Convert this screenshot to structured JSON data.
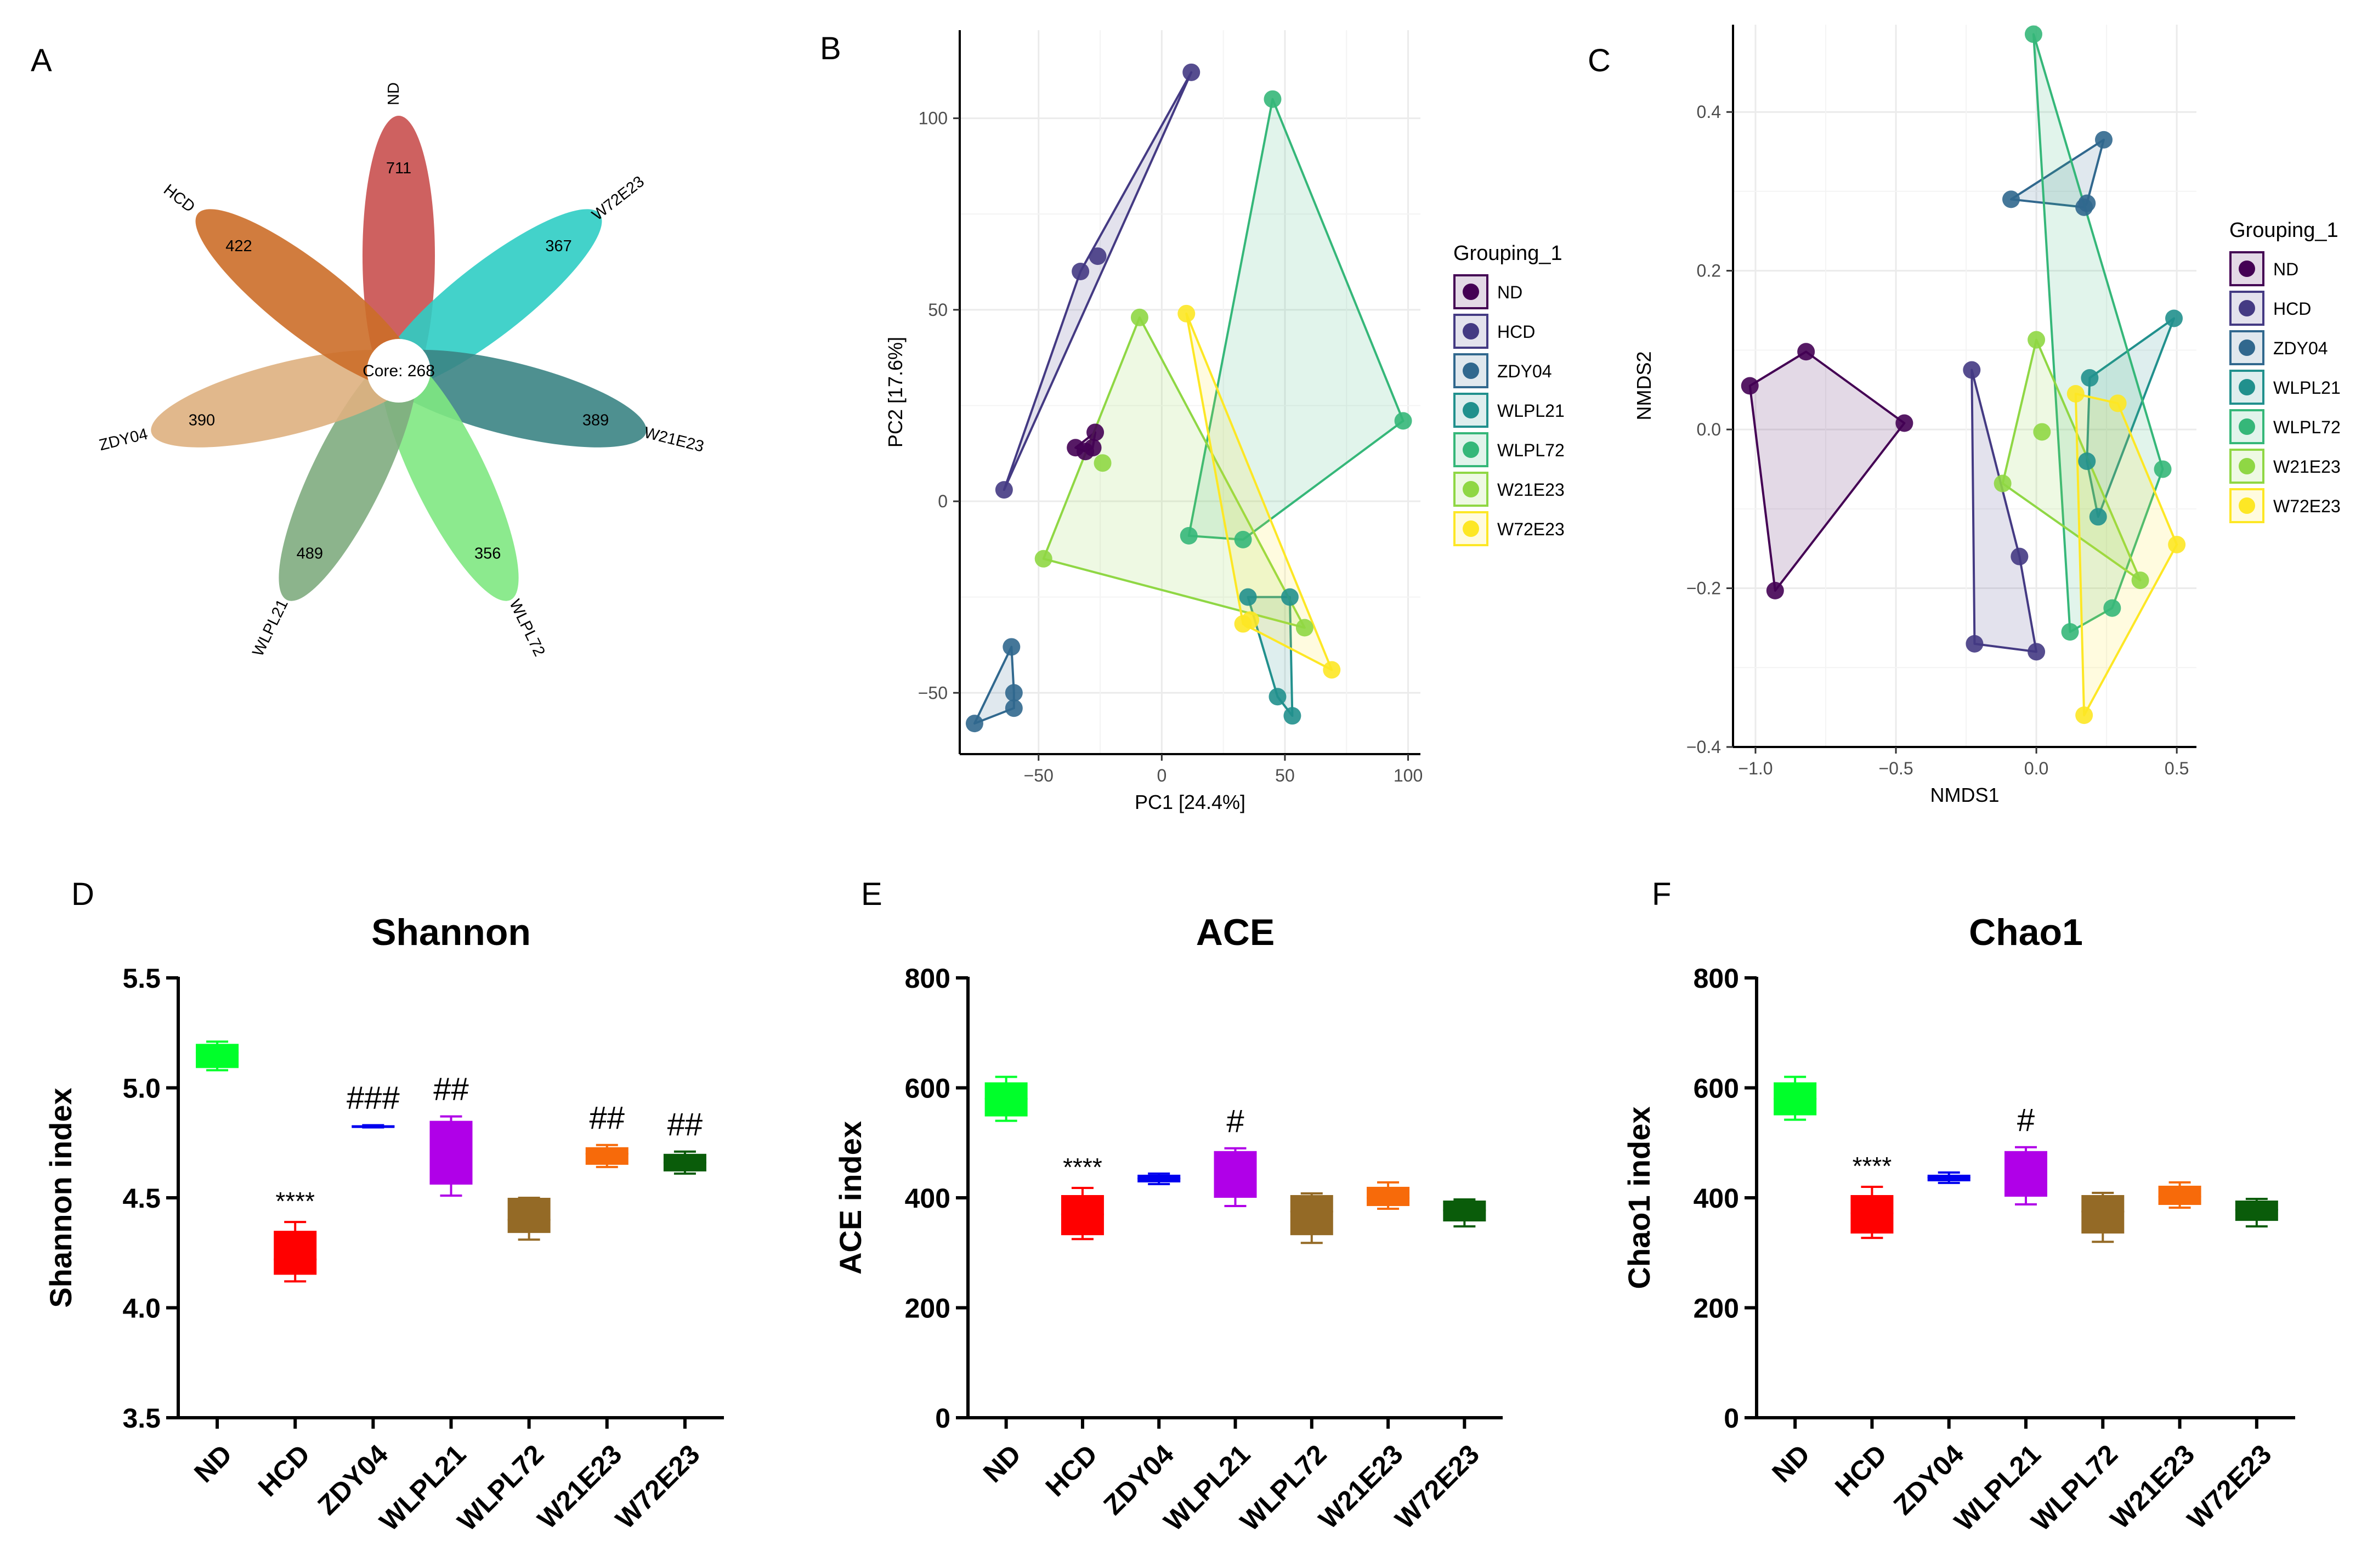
{
  "figure": {
    "panel_letters": [
      "A",
      "B",
      "C",
      "D",
      "E",
      "F"
    ]
  },
  "groups": [
    {
      "name": "ND",
      "pca_color": "#440154",
      "box_color": "#00ff2a"
    },
    {
      "name": "HCD",
      "pca_color": "#443a83",
      "box_color": "#ff0000"
    },
    {
      "name": "ZDY04",
      "pca_color": "#31688e",
      "box_color": "#0000ee"
    },
    {
      "name": "WLPL21",
      "pca_color": "#21908d",
      "box_color": "#b000e8"
    },
    {
      "name": "WLPL72",
      "pca_color": "#35b779",
      "box_color": "#946a26"
    },
    {
      "name": "W21E23",
      "pca_color": "#8fd744",
      "box_color": "#f76a0a"
    },
    {
      "name": "W72E23",
      "pca_color": "#fde725",
      "box_color": "#0a5c0a"
    }
  ],
  "chart_data": [
    {
      "panel": "A",
      "type": "other",
      "subtype": "flower-venn",
      "core_label": "Core: 268",
      "petals": [
        {
          "group": "ND",
          "value": 711,
          "color": "#c9504f"
        },
        {
          "group": "W72E23",
          "value": 367,
          "color": "#2fcdc4"
        },
        {
          "group": "W21E23",
          "value": 389,
          "color": "#3b8484"
        },
        {
          "group": "WLPL72",
          "value": 356,
          "color": "#7fe882"
        },
        {
          "group": "WLPL21",
          "value": 489,
          "color": "#7fac7f"
        },
        {
          "group": "ZDY04",
          "value": 390,
          "color": "#deb07f"
        },
        {
          "group": "HCD",
          "value": 422,
          "color": "#cc6e29"
        }
      ]
    },
    {
      "panel": "B",
      "type": "scatter",
      "xlabel": "PC1 [24.4%]",
      "ylabel": "PC2 [17.6%]",
      "xlim": [
        -82,
        105
      ],
      "ylim": [
        -66,
        123
      ],
      "xticks": [
        -50,
        0,
        50,
        100
      ],
      "xtick_labels": [
        "−50",
        "0",
        "50",
        "100"
      ],
      "yticks": [
        -50,
        0,
        50,
        100
      ],
      "ytick_labels": [
        "−50",
        "0",
        "50",
        "100"
      ],
      "legend_title": "Grouping_1",
      "series": [
        {
          "name": "ND",
          "points": [
            [
              -35,
              14
            ],
            [
              -31,
              13
            ],
            [
              -27,
              18
            ],
            [
              -28,
              14
            ]
          ]
        },
        {
          "name": "HCD",
          "points": [
            [
              -64,
              3
            ],
            [
              -33,
              60
            ],
            [
              -26,
              64
            ],
            [
              12,
              112
            ]
          ]
        },
        {
          "name": "ZDY04",
          "points": [
            [
              -76,
              -58
            ],
            [
              -61,
              -38
            ],
            [
              -60,
              -50
            ],
            [
              -60,
              -54
            ]
          ]
        },
        {
          "name": "WLPL21",
          "points": [
            [
              35,
              -25
            ],
            [
              52,
              -25
            ],
            [
              53,
              -56
            ],
            [
              47,
              -51
            ]
          ]
        },
        {
          "name": "WLPL72",
          "points": [
            [
              11,
              -9
            ],
            [
              33,
              -10
            ],
            [
              45,
              105
            ],
            [
              98,
              21
            ]
          ]
        },
        {
          "name": "W21E23",
          "points": [
            [
              -48,
              -15
            ],
            [
              -24,
              10
            ],
            [
              -9,
              48
            ],
            [
              58,
              -33
            ]
          ]
        },
        {
          "name": "W72E23",
          "points": [
            [
              10,
              49
            ],
            [
              33,
              -32
            ],
            [
              36,
              -31
            ],
            [
              69,
              -44
            ]
          ]
        }
      ]
    },
    {
      "panel": "C",
      "type": "scatter",
      "xlabel": "NMDS1",
      "ylabel": "NMDS2",
      "xlim": [
        -1.08,
        0.57
      ],
      "ylim": [
        -0.4,
        0.51
      ],
      "xticks": [
        -1.0,
        -0.5,
        0.0,
        0.5
      ],
      "xtick_labels": [
        "−1.0",
        "−0.5",
        "0.0",
        "0.5"
      ],
      "yticks": [
        -0.4,
        -0.2,
        0.0,
        0.2,
        0.4
      ],
      "ytick_labels": [
        "−0.4",
        "−0.2",
        "0.0",
        "0.2",
        "0.4"
      ],
      "legend_title": "Grouping_1",
      "series": [
        {
          "name": "ND",
          "points": [
            [
              -1.02,
              0.055
            ],
            [
              -0.82,
              0.098
            ],
            [
              -0.47,
              0.008
            ],
            [
              -0.93,
              -0.203
            ]
          ]
        },
        {
          "name": "HCD",
          "points": [
            [
              -0.23,
              0.075
            ],
            [
              -0.06,
              -0.16
            ],
            [
              -0.22,
              -0.27
            ],
            [
              0.0,
              -0.28
            ]
          ]
        },
        {
          "name": "ZDY04",
          "points": [
            [
              -0.09,
              0.29
            ],
            [
              0.17,
              0.28
            ],
            [
              0.24,
              0.365
            ],
            [
              0.18,
              0.285
            ]
          ]
        },
        {
          "name": "WLPL21",
          "points": [
            [
              0.19,
              0.065
            ],
            [
              0.18,
              -0.04
            ],
            [
              0.22,
              -0.11
            ],
            [
              0.49,
              0.14
            ]
          ]
        },
        {
          "name": "WLPL72",
          "points": [
            [
              -0.01,
              0.498
            ],
            [
              0.12,
              -0.255
            ],
            [
              0.27,
              -0.225
            ],
            [
              0.45,
              -0.05
            ]
          ]
        },
        {
          "name": "W21E23",
          "points": [
            [
              -0.12,
              -0.068
            ],
            [
              0.0,
              0.113
            ],
            [
              0.02,
              -0.003
            ],
            [
              0.37,
              -0.19
            ]
          ]
        },
        {
          "name": "W72E23",
          "points": [
            [
              0.14,
              0.045
            ],
            [
              0.17,
              -0.36
            ],
            [
              0.29,
              0.033
            ],
            [
              0.5,
              -0.145
            ]
          ]
        }
      ]
    },
    {
      "panel": "D",
      "type": "box",
      "title": "Shannon",
      "ylabel": "Shannon index",
      "ylim": [
        3.5,
        5.5
      ],
      "yticks": [
        3.5,
        4.0,
        4.5,
        5.0,
        5.5
      ],
      "ytick_labels": [
        "3.5",
        "4.0",
        "4.5",
        "5.0",
        "5.5"
      ],
      "categories": [
        "ND",
        "HCD",
        "ZDY04",
        "WLPL21",
        "WLPL72",
        "W21E23",
        "W72E23"
      ],
      "boxes": [
        {
          "min": 5.08,
          "q1": 5.09,
          "median": 5.16,
          "q3": 5.2,
          "max": 5.21
        },
        {
          "min": 4.12,
          "q1": 4.15,
          "median": 4.22,
          "q3": 4.35,
          "max": 4.39
        },
        {
          "min": 4.82,
          "q1": 4.82,
          "median": 4.825,
          "q3": 4.83,
          "max": 4.83
        },
        {
          "min": 4.51,
          "q1": 4.56,
          "median": 4.62,
          "q3": 4.85,
          "max": 4.87
        },
        {
          "min": 4.31,
          "q1": 4.34,
          "median": 4.4,
          "q3": 4.5,
          "max": 4.5
        },
        {
          "min": 4.64,
          "q1": 4.65,
          "median": 4.7,
          "q3": 4.73,
          "max": 4.74
        },
        {
          "min": 4.61,
          "q1": 4.62,
          "median": 4.66,
          "q3": 4.7,
          "max": 4.71
        }
      ],
      "annotations": [
        "",
        "****",
        "###",
        "##",
        "",
        "##",
        "##"
      ]
    },
    {
      "panel": "E",
      "type": "box",
      "title": "ACE",
      "ylabel": "ACE index",
      "ylim": [
        0,
        800
      ],
      "yticks": [
        0,
        200,
        400,
        600,
        800
      ],
      "ytick_labels": [
        "0",
        "200",
        "400",
        "600",
        "800"
      ],
      "categories": [
        "ND",
        "HCD",
        "ZDY04",
        "WLPL21",
        "WLPL72",
        "W21E23",
        "W72E23"
      ],
      "boxes": [
        {
          "min": 540,
          "q1": 548,
          "median": 580,
          "q3": 610,
          "max": 620
        },
        {
          "min": 325,
          "q1": 332,
          "median": 370,
          "q3": 405,
          "max": 418
        },
        {
          "min": 425,
          "q1": 428,
          "median": 435,
          "q3": 442,
          "max": 444
        },
        {
          "min": 385,
          "q1": 400,
          "median": 430,
          "q3": 485,
          "max": 490
        },
        {
          "min": 318,
          "q1": 332,
          "median": 375,
          "q3": 405,
          "max": 408
        },
        {
          "min": 380,
          "q1": 385,
          "median": 400,
          "q3": 420,
          "max": 428
        },
        {
          "min": 348,
          "q1": 357,
          "median": 377,
          "q3": 395,
          "max": 397
        }
      ],
      "annotations": [
        "",
        "****",
        "",
        "#",
        "",
        "",
        ""
      ]
    },
    {
      "panel": "F",
      "type": "box",
      "title": "Chao1",
      "ylabel": "Chao1 index",
      "ylim": [
        0,
        800
      ],
      "yticks": [
        0,
        200,
        400,
        600,
        800
      ],
      "ytick_labels": [
        "0",
        "200",
        "400",
        "600",
        "800"
      ],
      "categories": [
        "ND",
        "HCD",
        "ZDY04",
        "WLPL21",
        "WLPL72",
        "W21E23",
        "W72E23"
      ],
      "boxes": [
        {
          "min": 542,
          "q1": 550,
          "median": 580,
          "q3": 610,
          "max": 620
        },
        {
          "min": 327,
          "q1": 335,
          "median": 372,
          "q3": 405,
          "max": 420
        },
        {
          "min": 427,
          "q1": 430,
          "median": 437,
          "q3": 442,
          "max": 446
        },
        {
          "min": 388,
          "q1": 402,
          "median": 432,
          "q3": 485,
          "max": 492
        },
        {
          "min": 320,
          "q1": 335,
          "median": 375,
          "q3": 405,
          "max": 409
        },
        {
          "min": 382,
          "q1": 387,
          "median": 402,
          "q3": 422,
          "max": 428
        },
        {
          "min": 348,
          "q1": 358,
          "median": 378,
          "q3": 395,
          "max": 398
        }
      ],
      "annotations": [
        "",
        "****",
        "",
        "#",
        "",
        "",
        ""
      ]
    }
  ]
}
